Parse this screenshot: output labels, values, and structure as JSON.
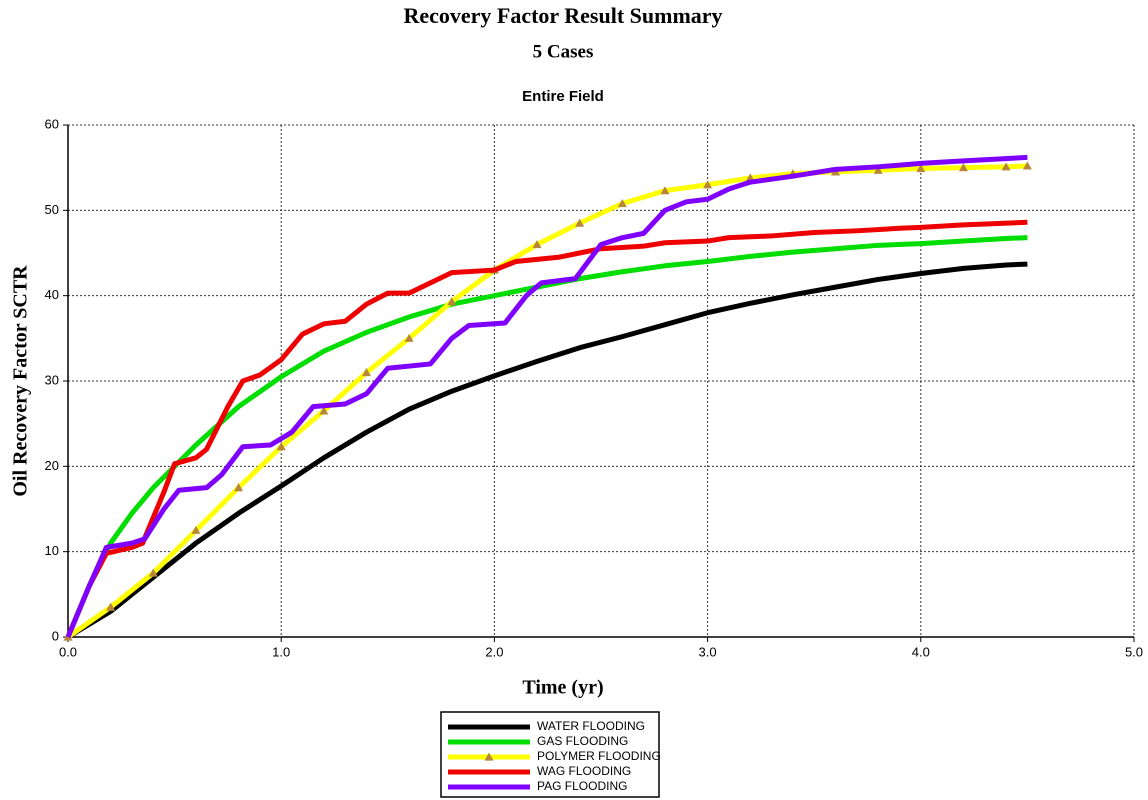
{
  "chart_data": {
    "type": "line",
    "title": "Recovery Factor Result Summary",
    "subtitle": "5 Cases",
    "annotation": "Entire Field",
    "x_label": "Time (yr)",
    "y_label": "Oil Recovery Factor SCTR",
    "xlim": [
      0,
      5
    ],
    "ylim": [
      0,
      60
    ],
    "xticks": [
      {
        "value": 0,
        "label": "0.0"
      },
      {
        "value": 1,
        "label": "1.0"
      },
      {
        "value": 2,
        "label": "2.0"
      },
      {
        "value": 3,
        "label": "3.0"
      },
      {
        "value": 4,
        "label": "4.0"
      },
      {
        "value": 5,
        "label": "5.0"
      }
    ],
    "yticks": [
      0,
      10,
      20,
      30,
      40,
      50,
      60
    ],
    "grid": true,
    "legend": "bottom",
    "series": [
      {
        "name": "WATER FLOODING",
        "color": "#000000",
        "x": [
          0,
          0.2,
          0.4,
          0.6,
          0.8,
          1.0,
          1.2,
          1.4,
          1.6,
          1.8,
          2.0,
          2.2,
          2.4,
          2.6,
          2.8,
          3.0,
          3.2,
          3.4,
          3.6,
          3.8,
          4.0,
          4.2,
          4.4,
          4.5
        ],
        "values": [
          0,
          3,
          7,
          11,
          14.5,
          17.7,
          21,
          24,
          26.7,
          28.8,
          30.6,
          32.3,
          33.9,
          35.2,
          36.6,
          38,
          39.1,
          40.1,
          41,
          41.9,
          42.6,
          43.2,
          43.6,
          43.7
        ]
      },
      {
        "name": "GAS FLOODING",
        "color": "#00dd00",
        "x": [
          0,
          0.1,
          0.2,
          0.3,
          0.4,
          0.5,
          0.6,
          0.8,
          1.0,
          1.2,
          1.4,
          1.6,
          1.8,
          2.0,
          2.2,
          2.4,
          2.6,
          2.8,
          3.0,
          3.2,
          3.4,
          3.6,
          3.8,
          4.0,
          4.2,
          4.4,
          4.5
        ],
        "values": [
          0,
          6,
          11,
          14.5,
          17.5,
          20,
          22.5,
          27,
          30.5,
          33.5,
          35.7,
          37.5,
          39,
          40,
          41,
          42,
          42.8,
          43.5,
          44,
          44.6,
          45.1,
          45.5,
          45.9,
          46.1,
          46.4,
          46.7,
          46.8
        ]
      },
      {
        "name": "POLYMER FLOODING",
        "color": "#ffff00",
        "marker": "triangle",
        "marker_color": "#b8863b",
        "x": [
          0,
          0.2,
          0.4,
          0.6,
          0.8,
          1.0,
          1.2,
          1.4,
          1.6,
          1.8,
          2.0,
          2.2,
          2.4,
          2.6,
          2.8,
          3.0,
          3.2,
          3.4,
          3.6,
          3.8,
          4.0,
          4.2,
          4.4,
          4.5
        ],
        "values": [
          0,
          3.5,
          7.5,
          12.5,
          17.5,
          22.3,
          26.5,
          31,
          35,
          39.3,
          43,
          46,
          48.5,
          50.8,
          52.3,
          53,
          53.8,
          54.3,
          54.5,
          54.7,
          54.9,
          55,
          55.1,
          55.2
        ]
      },
      {
        "name": "WAG FLOODING",
        "color": "#ee0000",
        "x": [
          0,
          0.1,
          0.18,
          0.3,
          0.35,
          0.45,
          0.5,
          0.6,
          0.65,
          0.75,
          0.82,
          0.9,
          1.0,
          1.1,
          1.2,
          1.3,
          1.4,
          1.5,
          1.6,
          1.7,
          1.8,
          2.0,
          2.1,
          2.3,
          2.4,
          2.5,
          2.7,
          2.8,
          3.0,
          3.1,
          3.3,
          3.5,
          3.7,
          3.9,
          4.0,
          4.2,
          4.5
        ],
        "values": [
          0,
          6,
          9.8,
          10.5,
          11,
          17,
          20.3,
          21,
          22,
          27,
          30,
          30.7,
          32.5,
          35.5,
          36.7,
          37,
          39,
          40.3,
          40.3,
          41.5,
          42.7,
          43,
          44,
          44.5,
          45,
          45.5,
          45.8,
          46.2,
          46.4,
          46.8,
          47,
          47.4,
          47.6,
          47.9,
          48,
          48.3,
          48.6
        ]
      },
      {
        "name": "PAG FLOODING",
        "color": "#8000ff",
        "x": [
          0,
          0.1,
          0.18,
          0.3,
          0.36,
          0.45,
          0.52,
          0.65,
          0.72,
          0.82,
          0.95,
          1.05,
          1.15,
          1.3,
          1.4,
          1.5,
          1.7,
          1.8,
          1.88,
          2.05,
          2.15,
          2.22,
          2.38,
          2.5,
          2.6,
          2.7,
          2.8,
          2.9,
          3.0,
          3.1,
          3.2,
          3.4,
          3.6,
          3.8,
          4.0,
          4.2,
          4.5
        ],
        "values": [
          0,
          6,
          10.5,
          11,
          11.5,
          15,
          17.2,
          17.5,
          19,
          22.3,
          22.5,
          24,
          27,
          27.3,
          28.5,
          31.5,
          32,
          35,
          36.5,
          36.8,
          40,
          41.5,
          42,
          46,
          46.8,
          47.3,
          50,
          51,
          51.3,
          52.5,
          53.3,
          54,
          54.8,
          55.1,
          55.5,
          55.8,
          56.2
        ]
      }
    ]
  }
}
